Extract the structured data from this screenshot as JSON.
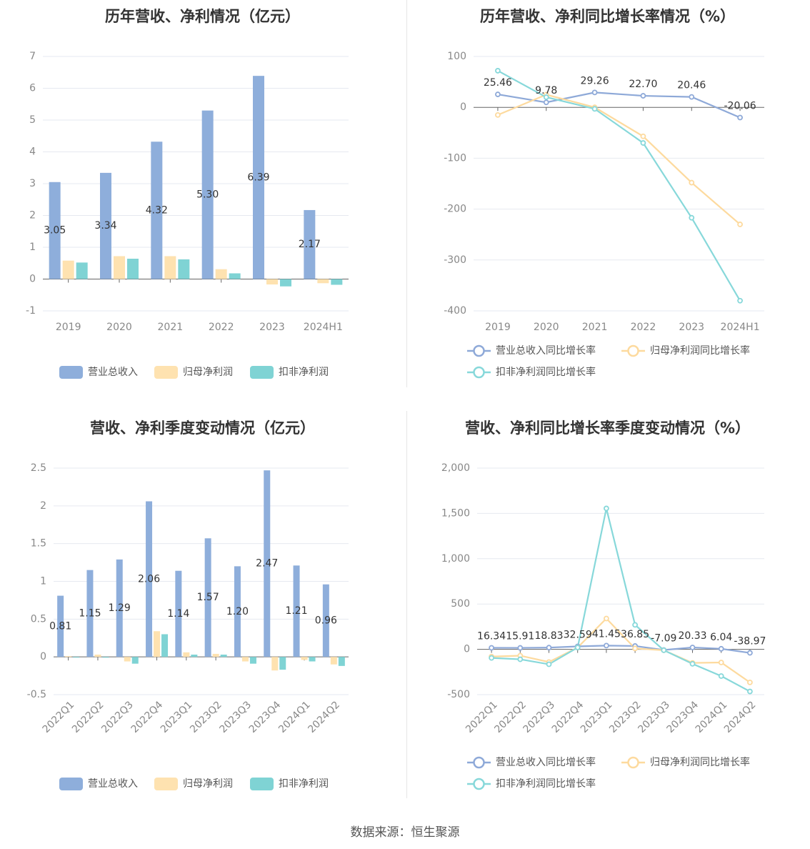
{
  "colors": {
    "revenue": "#8EAEDB",
    "net_profit": "#FEE2B0",
    "deducted_profit": "#7FD3D4",
    "rev_line": "#8EA9D8",
    "np_line": "#FDDA9E",
    "dp_line": "#87D8DA",
    "grid": "#E6E9F0",
    "axis": "#666666"
  },
  "footer": {
    "text": "数据来源：恒生聚源"
  },
  "chart_data": [
    {
      "id": "annual-revenue-profit",
      "type": "bar",
      "title": "历年营收、净利情况（亿元）",
      "categories": [
        "2019",
        "2020",
        "2021",
        "2022",
        "2023",
        "2024H1"
      ],
      "ylim": [
        -1,
        7
      ],
      "yticks": [
        -1,
        0,
        1,
        2,
        3,
        4,
        5,
        6,
        7
      ],
      "series": [
        {
          "name": "营业总收入",
          "color_key": "revenue",
          "values": [
            3.05,
            3.34,
            4.32,
            5.3,
            6.39,
            2.17
          ],
          "labels": [
            "3.05",
            "3.34",
            "4.32",
            "5.30",
            "6.39",
            "2.17"
          ]
        },
        {
          "name": "归母净利润",
          "color_key": "net_profit",
          "values": [
            0.58,
            0.72,
            0.72,
            0.31,
            -0.17,
            -0.13
          ]
        },
        {
          "name": "扣非净利润",
          "color_key": "deducted_profit",
          "values": [
            0.52,
            0.64,
            0.62,
            0.18,
            -0.23,
            -0.18
          ]
        }
      ],
      "legend_position": "bottom"
    },
    {
      "id": "annual-growth-rate",
      "type": "line",
      "title": "历年营收、净利同比增长率情况（%）",
      "categories": [
        "2019",
        "2020",
        "2021",
        "2022",
        "2023",
        "2024H1"
      ],
      "ylim": [
        -400,
        100
      ],
      "yticks": [
        -400,
        -300,
        -200,
        -100,
        0,
        100
      ],
      "series": [
        {
          "name": "营业总收入同比增长率",
          "color_key": "rev_line",
          "values": [
            25.46,
            9.78,
            29.26,
            22.7,
            20.46,
            -20.06
          ],
          "labels": [
            "25.46",
            "9.78",
            "29.26",
            "22.70",
            "20.46",
            "-20.06"
          ]
        },
        {
          "name": "归母净利润同比增长率",
          "color_key": "np_line",
          "values": [
            -15,
            25,
            0,
            -57,
            -148,
            -230
          ]
        },
        {
          "name": "扣非净利润同比增长率",
          "color_key": "dp_line",
          "values": [
            72,
            20,
            -3,
            -70,
            -217,
            -380
          ]
        }
      ],
      "legend_position": "bottom"
    },
    {
      "id": "quarterly-revenue-profit",
      "type": "bar",
      "title": "营收、净利季度变动情况（亿元）",
      "categories": [
        "2022Q1",
        "2022Q2",
        "2022Q3",
        "2022Q4",
        "2023Q1",
        "2023Q2",
        "2023Q3",
        "2023Q4",
        "2024Q1",
        "2024Q2"
      ],
      "ylim": [
        -0.5,
        2.5
      ],
      "yticks": [
        -0.5,
        0,
        0.5,
        1,
        1.5,
        2,
        2.5
      ],
      "ytick_labels": [
        "-0.5",
        "0",
        "0.5",
        "1",
        "1.5",
        "2",
        "2.5"
      ],
      "series": [
        {
          "name": "营业总收入",
          "color_key": "revenue",
          "values": [
            0.81,
            1.15,
            1.29,
            2.06,
            1.14,
            1.57,
            1.2,
            2.47,
            1.21,
            0.96
          ],
          "labels": [
            "0.81",
            "1.15",
            "1.29",
            "2.06",
            "1.14",
            "1.57",
            "1.20",
            "2.47",
            "1.21",
            "0.96"
          ]
        },
        {
          "name": "归母净利润",
          "color_key": "net_profit",
          "values": [
            0.01,
            0.03,
            -0.06,
            0.34,
            0.06,
            0.04,
            -0.06,
            -0.18,
            -0.04,
            -0.1
          ]
        },
        {
          "name": "扣非净利润",
          "color_key": "deducted_profit",
          "values": [
            0.0,
            -0.01,
            -0.09,
            0.3,
            0.03,
            0.03,
            -0.09,
            -0.17,
            -0.06,
            -0.12
          ]
        }
      ],
      "legend_position": "bottom"
    },
    {
      "id": "quarterly-growth-rate",
      "type": "line",
      "title": "营收、净利同比增长率季度变动情况（%）",
      "categories": [
        "2022Q1",
        "2022Q2",
        "2022Q3",
        "2022Q4",
        "2023Q1",
        "2023Q2",
        "2023Q3",
        "2023Q4",
        "2024Q1",
        "2024Q2"
      ],
      "ylim": [
        -500,
        2000
      ],
      "yticks": [
        -500,
        0,
        500,
        1000,
        1500,
        2000
      ],
      "ytick_labels": [
        "-500",
        "0",
        "500",
        "1,000",
        "1,500",
        "2,000"
      ],
      "series": [
        {
          "name": "营业总收入同比增长率",
          "color_key": "rev_line",
          "values": [
            16.34,
            15.91,
            18.83,
            32.59,
            41.45,
            36.85,
            -7.09,
            20.33,
            6.04,
            -38.97
          ],
          "labels": [
            "16.34",
            "15.91",
            "18.83",
            "32.59",
            "41.45",
            "36.85",
            "-7.09",
            "20.33",
            "6.04",
            "-38.97"
          ]
        },
        {
          "name": "归母净利润同比增长率",
          "color_key": "np_line",
          "values": [
            -80,
            -70,
            -140,
            20,
            340,
            10,
            -10,
            -150,
            -145,
            -365
          ]
        },
        {
          "name": "扣非净利润同比增长率",
          "color_key": "dp_line",
          "values": [
            -95,
            -110,
            -165,
            20,
            1555,
            270,
            -10,
            -160,
            -295,
            -465
          ]
        }
      ],
      "legend_position": "bottom"
    }
  ]
}
